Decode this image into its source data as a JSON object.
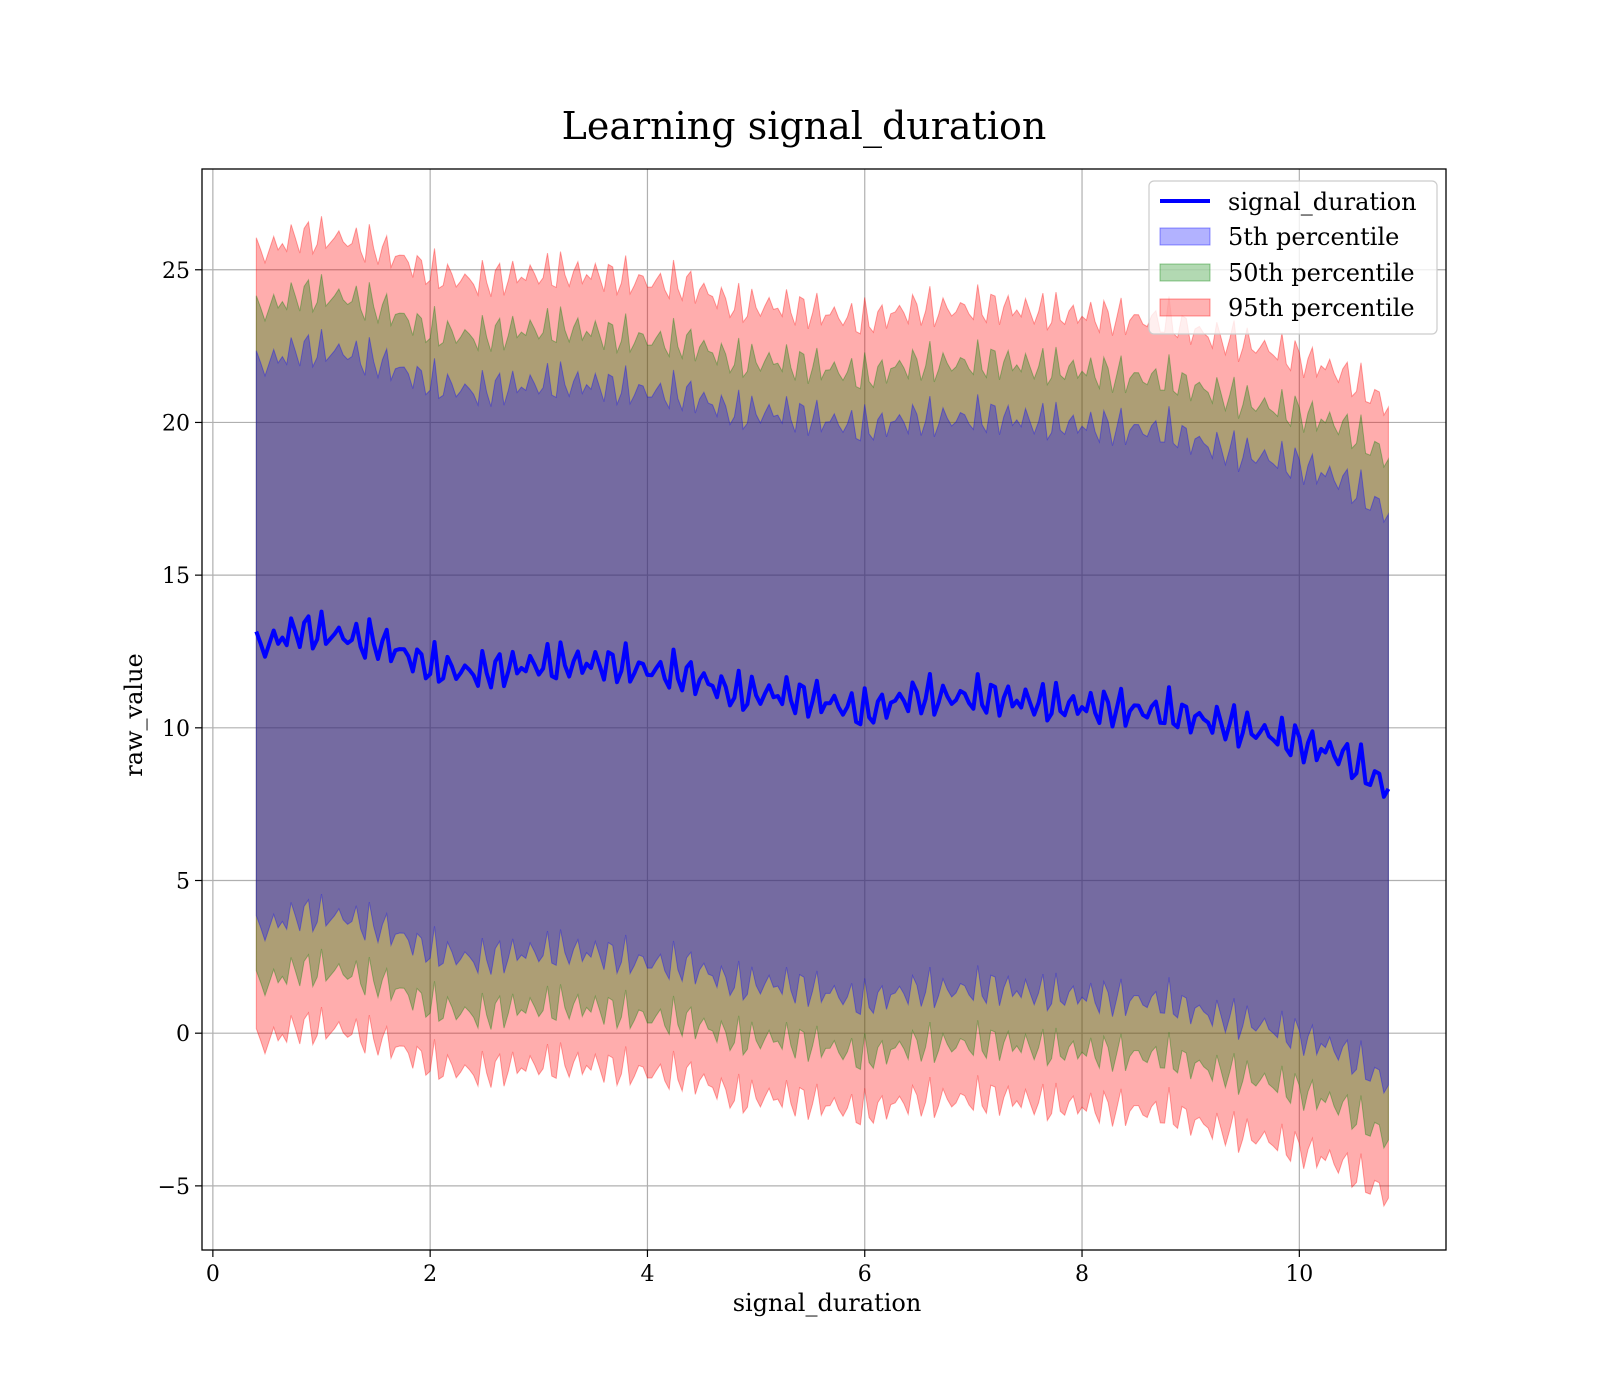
{
  "chart_data": {
    "type": "area",
    "title": "Learning signal_duration",
    "xlabel": "signal_duration",
    "ylabel": "raw_value",
    "xlim": [
      -0.1,
      11.35
    ],
    "ylim": [
      -7.1,
      28.3
    ],
    "xticks": [
      0,
      2,
      4,
      6,
      8,
      10
    ],
    "yticks": [
      -5,
      0,
      5,
      10,
      15,
      20,
      25
    ],
    "xtick_labels": [
      "0",
      "2",
      "4",
      "6",
      "8",
      "10"
    ],
    "ytick_labels": [
      "−5",
      "0",
      "5",
      "10",
      "15",
      "20",
      "25"
    ],
    "grid": true,
    "legend_position": "top-right",
    "legend": [
      "signal_duration",
      "5th percentile",
      "50th percentile",
      "95th percentile"
    ],
    "colors": {
      "line": "#0000ff",
      "p5": "#0000ff",
      "p50": "#008000",
      "p95": "#ff0000"
    },
    "x": [
      0.4,
      0.8,
      1.2,
      1.6,
      2.0,
      2.4,
      2.8,
      3.2,
      3.6,
      4.0,
      4.4,
      4.8,
      5.2,
      5.6,
      6.0,
      6.4,
      6.8,
      7.2,
      7.6,
      8.0,
      8.4,
      8.8,
      9.2,
      9.6,
      10.0,
      10.4,
      10.82
    ],
    "series": [
      {
        "name": "signal_duration",
        "values": [
          12.6,
          13.2,
          13.0,
          12.7,
          12.0,
          11.8,
          12.0,
          12.1,
          12.1,
          11.9,
          11.7,
          11.1,
          11.1,
          10.9,
          10.5,
          11.0,
          11.0,
          11.0,
          10.8,
          10.7,
          10.6,
          10.5,
          10.2,
          9.9,
          9.5,
          9.1,
          8.0
        ]
      },
      {
        "name": "5th percentile",
        "band": true,
        "upper": [
          21.8,
          22.4,
          22.3,
          21.9,
          21.3,
          21.0,
          21.2,
          21.3,
          21.2,
          21.0,
          20.9,
          20.3,
          20.3,
          20.1,
          19.8,
          20.1,
          20.1,
          20.2,
          20.0,
          19.9,
          19.8,
          19.7,
          19.2,
          18.9,
          18.6,
          18.1,
          17.0
        ],
        "lower": [
          3.3,
          3.9,
          3.8,
          3.4,
          2.7,
          2.4,
          2.6,
          2.7,
          2.6,
          2.3,
          2.2,
          1.6,
          1.6,
          1.4,
          1.0,
          1.4,
          1.4,
          1.5,
          1.3,
          1.2,
          1.1,
          1.0,
          0.6,
          0.3,
          -0.1,
          -0.6,
          -1.7
        ]
      },
      {
        "name": "50th percentile",
        "band": true,
        "upper": [
          23.6,
          24.2,
          24.1,
          23.7,
          23.0,
          22.8,
          23.0,
          23.1,
          22.9,
          22.7,
          22.6,
          22.0,
          22.0,
          21.8,
          21.5,
          21.9,
          21.9,
          22.0,
          21.8,
          21.7,
          21.5,
          21.4,
          21.0,
          20.6,
          20.3,
          19.9,
          18.8
        ],
        "lower": [
          1.5,
          2.1,
          2.0,
          1.6,
          0.9,
          0.6,
          0.8,
          0.9,
          0.8,
          0.5,
          0.4,
          -0.2,
          -0.2,
          -0.4,
          -0.8,
          -0.4,
          -0.4,
          -0.3,
          -0.5,
          -0.6,
          -0.7,
          -0.8,
          -1.2,
          -1.5,
          -1.9,
          -2.4,
          -3.5
        ]
      },
      {
        "name": "95th percentile",
        "band": true,
        "upper": [
          25.5,
          26.1,
          26.0,
          25.6,
          24.9,
          24.6,
          24.8,
          24.9,
          24.8,
          24.6,
          24.5,
          23.8,
          23.8,
          23.6,
          23.3,
          23.7,
          23.7,
          23.8,
          23.6,
          23.5,
          23.4,
          23.3,
          22.8,
          22.5,
          22.1,
          21.6,
          20.5
        ],
        "lower": [
          -0.4,
          0.2,
          0.1,
          -0.3,
          -1.0,
          -1.3,
          -1.1,
          -1.0,
          -1.1,
          -1.3,
          -1.4,
          -2.1,
          -2.1,
          -2.3,
          -2.6,
          -2.2,
          -2.2,
          -2.1,
          -2.3,
          -2.4,
          -2.5,
          -2.6,
          -3.1,
          -3.4,
          -3.8,
          -4.3,
          -5.4
        ]
      }
    ]
  }
}
